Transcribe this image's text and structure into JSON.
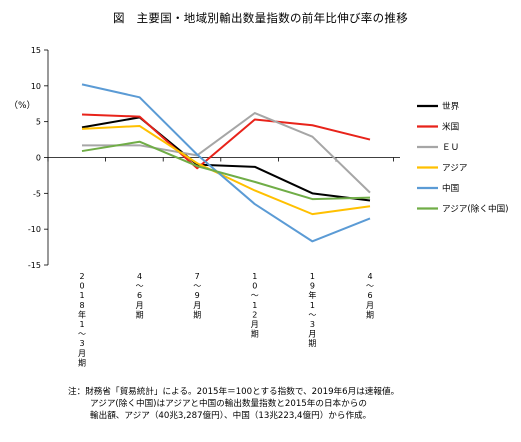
{
  "chart_data": {
    "type": "line",
    "title": "図　主要国・地域別輸出数量指数の前年比伸び率の推移",
    "ylabel": "（%）",
    "ylim": [
      -15,
      15
    ],
    "yticks": [
      15,
      10,
      5,
      0,
      -5,
      -10,
      -15
    ],
    "categories": [
      "2018年1～3月期",
      "4～6月期",
      "7～9月期",
      "10～12月期",
      "19年1～3月期",
      "4～6月期"
    ],
    "series": [
      {
        "name": "世界",
        "color": "#000000",
        "values": [
          4.2,
          5.6,
          -1.0,
          -1.3,
          -5.0,
          -6.0
        ]
      },
      {
        "name": "米国",
        "color": "#e8231a",
        "values": [
          6.0,
          5.7,
          -1.5,
          5.3,
          4.5,
          2.5
        ]
      },
      {
        "name": "ＥＵ",
        "color": "#a6a6a6",
        "values": [
          1.7,
          1.7,
          0.3,
          6.2,
          2.9,
          -4.9
        ]
      },
      {
        "name": "アジア",
        "color": "#ffc000",
        "values": [
          4.0,
          4.4,
          -0.8,
          -4.6,
          -7.9,
          -6.8
        ]
      },
      {
        "name": "中国",
        "color": "#5b9bd5",
        "values": [
          10.2,
          8.4,
          0.4,
          -6.5,
          -11.7,
          -8.5
        ]
      },
      {
        "name": "アジア(除く中国)",
        "color": "#70ad47",
        "values": [
          0.9,
          2.2,
          -1.2,
          -3.4,
          -5.8,
          -5.6
        ]
      }
    ],
    "legend_position": "right",
    "grid": false
  },
  "notes": [
    "注：財務省「貿易統計」による。2015年＝100とする指数で、2019年6月は速報値。",
    "アジア(除く中国)はアジアと中国の輸出数量指数と2015年の日本からの",
    "輸出額、アジア（40兆3,287億円）、中国（13兆223,4億円）から作成。"
  ]
}
